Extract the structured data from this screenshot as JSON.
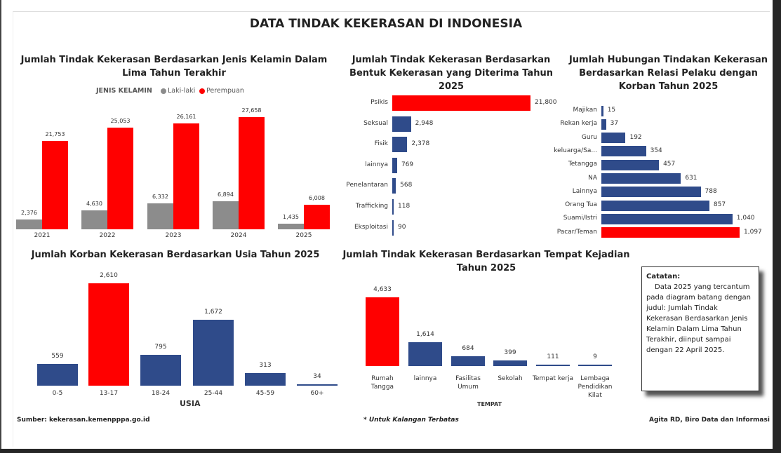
{
  "title": "DATA TINDAK KEKERASAN DI INDONESIA",
  "colors": {
    "red": "#ff0000",
    "blue": "#2f4b8a",
    "gray": "#8c8c8c"
  },
  "chart_data": [
    {
      "type": "bar",
      "title": "Jumlah Tindak Kekerasan Berdasarkan Jenis Kelamin Dalam Lima Tahun Terakhir",
      "legend_title": "JENIS KELAMIN",
      "categories": [
        "2021",
        "2022",
        "2023",
        "2024",
        "2025"
      ],
      "series": [
        {
          "name": "Laki-laki",
          "values": [
            2376,
            4630,
            6332,
            6894,
            1435
          ],
          "labels": [
            "2,376",
            "4,630",
            "6,332",
            "6,894",
            "1,435"
          ]
        },
        {
          "name": "Perempuan",
          "values": [
            21753,
            25053,
            26161,
            27658,
            6008
          ],
          "labels": [
            "21,753",
            "25,053",
            "26,161",
            "27,658",
            "6,008"
          ]
        }
      ]
    },
    {
      "type": "bar",
      "orientation": "horizontal",
      "title": "Jumlah Tindak Kekerasan Berdasarkan Bentuk Kekerasan yang Diterima Tahun 2025",
      "categories": [
        "Psikis",
        "Seksual",
        "Fisik",
        "lainnya",
        "Penelantaran",
        "Trafficking",
        "Eksploitasi"
      ],
      "values": [
        21800,
        2948,
        2378,
        769,
        568,
        118,
        90
      ],
      "labels": [
        "21,800",
        "2,948",
        "2,378",
        "769",
        "568",
        "118",
        "90"
      ]
    },
    {
      "type": "bar",
      "orientation": "horizontal",
      "title": "Jumlah Hubungan Tindakan Kekerasan Berdasarkan Relasi Pelaku dengan Korban Tahun 2025",
      "categories": [
        "Majikan",
        "Rekan kerja",
        "Guru",
        "keluarga/Sa...",
        "Tetangga",
        "NA",
        "Lainnya",
        "Orang Tua",
        "Suami/Istri",
        "Pacar/Teman"
      ],
      "values": [
        15,
        37,
        192,
        354,
        457,
        631,
        788,
        857,
        1040,
        1097
      ],
      "labels": [
        "15",
        "37",
        "192",
        "354",
        "457",
        "631",
        "788",
        "857",
        "1,040",
        "1,097"
      ]
    },
    {
      "type": "bar",
      "title": "Jumlah Korban Kekerasan Berdasarkan Usia Tahun 2025",
      "xlabel": "USIA",
      "categories": [
        "0-5",
        "13-17",
        "18-24",
        "25-44",
        "45-59",
        "60+"
      ],
      "values": [
        559,
        2610,
        795,
        1672,
        313,
        34
      ],
      "labels": [
        "559",
        "2,610",
        "795",
        "1,672",
        "313",
        "34"
      ]
    },
    {
      "type": "bar",
      "title": "Jumlah Tindak Kekerasan Berdasarkan Tempat Kejadian Tahun 2025",
      "xlabel": "TEMPAT",
      "categories": [
        "Rumah Tangga",
        "lainnya",
        "Fasilitas Umum",
        "Sekolah",
        "Tempat kerja",
        "Lembaga Pendidikan Kilat"
      ],
      "values": [
        4633,
        1614,
        684,
        399,
        111,
        9
      ],
      "labels": [
        "4,633",
        "1,614",
        "684",
        "399",
        "111",
        "9"
      ]
    }
  ],
  "note": {
    "heading": "Catatan:",
    "body": "Data 2025 yang tercantum pada diagram batang dengan judul: Jumlah Tindak Kekerasan Berdasarkan Jenis Kelamin Dalam Lima Tahun Terakhir, diinput sampai dengan 22 April 2025."
  },
  "footer": {
    "source": "Sumber: kekerasan.kemenpppa.go.id",
    "restricted": "* Untuk Kalangan Terbatas",
    "author": "Agita RD, Biro Data dan Informasi"
  }
}
